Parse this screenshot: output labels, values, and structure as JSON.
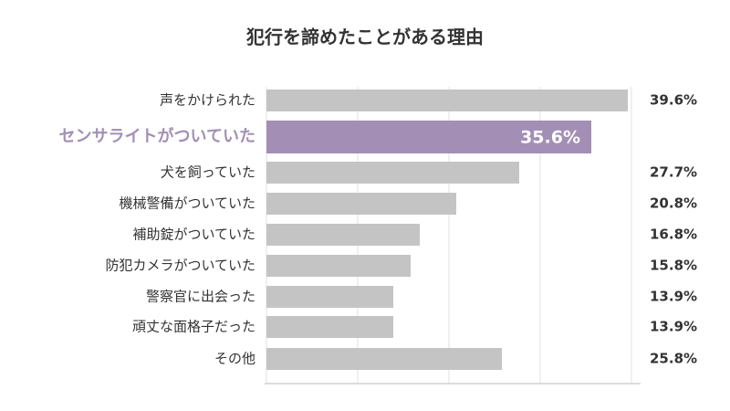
{
  "chart_data": {
    "type": "bar",
    "orientation": "horizontal",
    "title": "犯行を諦めたことがある理由",
    "categories": [
      "声をかけられた",
      "センサライトがついていた",
      "犬を飼っていた",
      "機械警備がついていた",
      "補助錠がついていた",
      "防犯カメラがついていた",
      "警察官に出会った",
      "頑丈な面格子だった",
      "その他"
    ],
    "values": [
      39.6,
      35.6,
      27.7,
      20.8,
      16.8,
      15.8,
      13.9,
      13.9,
      25.8
    ],
    "value_labels": [
      "39.6%",
      "35.6%",
      "27.7%",
      "20.8%",
      "16.8%",
      "15.8%",
      "13.9%",
      "13.9%",
      "25.8%"
    ],
    "color": "#c4c4c4",
    "highlight_index": 1,
    "highlight_color": "#a38fb5",
    "xlim": [
      0,
      40
    ],
    "xticks": [
      0,
      10,
      20,
      30,
      40
    ],
    "grid": true
  }
}
